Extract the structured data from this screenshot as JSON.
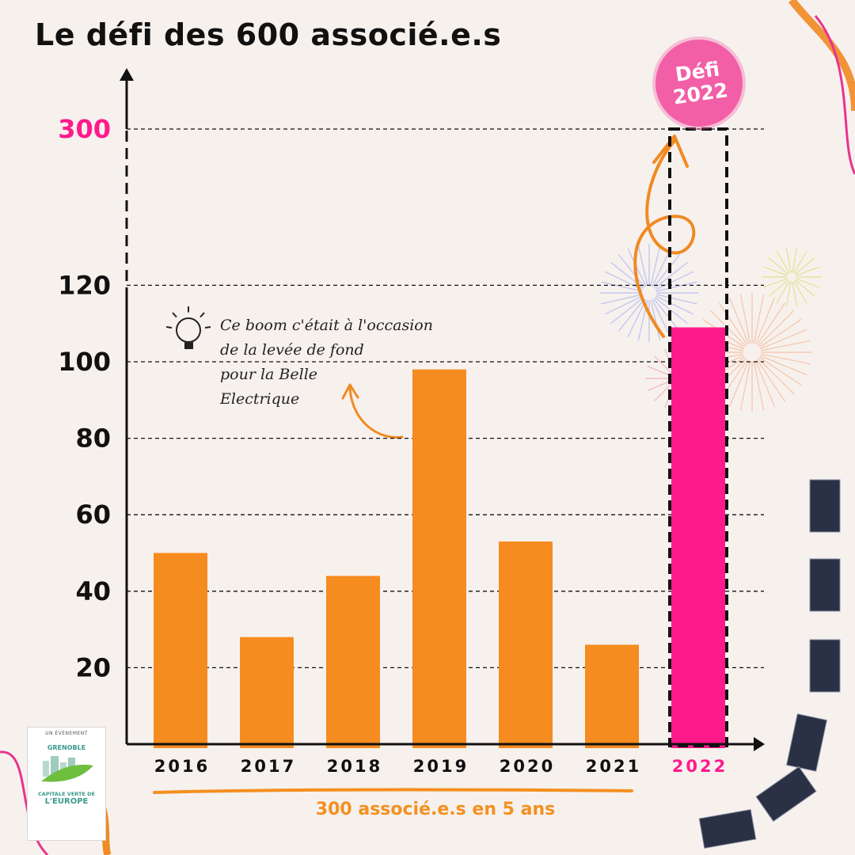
{
  "title": "Le défi des 600 associé.e.s",
  "badge": {
    "line1": "Défi",
    "line2": "2022"
  },
  "annotation": {
    "lines": [
      "Ce boom c'était à l'occasion",
      "de la levée de fond",
      "pour la Belle",
      "Electrique"
    ]
  },
  "footer": "300 associé.e.s en 5 ans",
  "logo": {
    "top": "UN ÉVÉNEMENT",
    "city": "GRENOBLE",
    "line1": "CAPITALE VERTE DE",
    "line2": "L'EUROPE"
  },
  "colors": {
    "bar": "#f68b1f",
    "highlight": "#ff1a8c",
    "text": "#111111",
    "footer": "#f39020"
  },
  "chart_data": {
    "type": "bar",
    "categories": [
      "2016",
      "2017",
      "2018",
      "2019",
      "2020",
      "2021",
      "2022"
    ],
    "values": [
      50,
      28,
      44,
      98,
      53,
      26,
      109
    ],
    "target": {
      "category": "2022",
      "value": 300
    },
    "yticks": [
      20,
      40,
      60,
      80,
      100,
      120,
      300
    ],
    "highlight_ytick": 300,
    "highlight_category": "2022",
    "axis_break": [
      120,
      300
    ],
    "ylim": [
      0,
      300
    ],
    "grid": true
  }
}
